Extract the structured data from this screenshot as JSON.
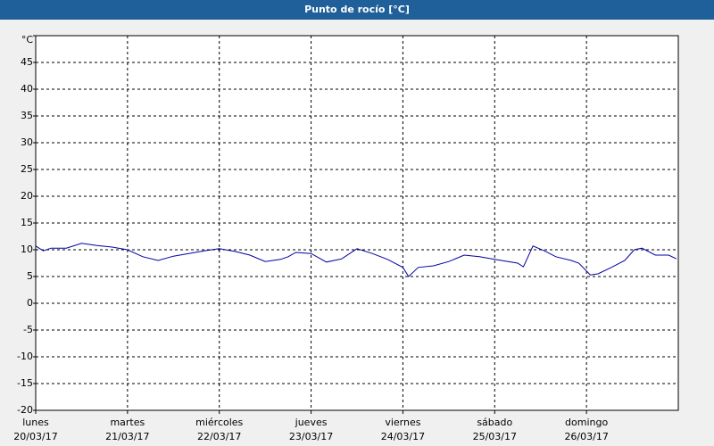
{
  "chart_data": {
    "type": "line",
    "title": "Punto de rocío [°C]",
    "xlim": [
      0,
      168
    ],
    "xticks": [
      {
        "value": 0,
        "label": [
          "lunes",
          "20/03/17"
        ]
      },
      {
        "value": 24,
        "label": [
          "martes",
          "21/03/17"
        ]
      },
      {
        "value": 48,
        "label": [
          "miércoles",
          "22/03/17"
        ]
      },
      {
        "value": 72,
        "label": [
          "jueves",
          "23/03/17"
        ]
      },
      {
        "value": 96,
        "label": [
          "viernes",
          "24/03/17"
        ]
      },
      {
        "value": 120,
        "label": [
          "sábado",
          "25/03/17"
        ]
      },
      {
        "value": 144,
        "label": [
          "domingo",
          "26/03/17"
        ]
      }
    ],
    "ylim": [
      -20,
      50
    ],
    "yticks": [
      -20,
      -15,
      -10,
      -5,
      0,
      5,
      10,
      15,
      20,
      25,
      30,
      35,
      40,
      45,
      {
        "value": 50,
        "label": "°C"
      }
    ],
    "grid": true,
    "series": [
      {
        "color": "#0000a0",
        "x": [
          0,
          2,
          4,
          8,
          12,
          16,
          20,
          24,
          28,
          32,
          36,
          40,
          44,
          48,
          52,
          56,
          60,
          64,
          66,
          68,
          72,
          76,
          80,
          84,
          88,
          92,
          96,
          97.5,
          100,
          104,
          108,
          112,
          116,
          120,
          126,
          127.5,
          130,
          133,
          136,
          140,
          142,
          145,
          147,
          150.5,
          154,
          156.5,
          158.5,
          162,
          165.5,
          167.5
        ],
        "values": [
          10.7,
          9.8,
          10.3,
          10.3,
          11.2,
          10.8,
          10.5,
          10,
          8.7,
          8,
          8.8,
          9.3,
          9.8,
          10.2,
          9.7,
          9,
          7.8,
          8.2,
          8.7,
          9.5,
          9.3,
          7.7,
          8.3,
          10.2,
          9.3,
          8.2,
          6.7,
          5,
          6.7,
          7,
          7.8,
          9,
          8.7,
          8.2,
          7.5,
          6.8,
          10.7,
          9.8,
          8.7,
          8,
          7.5,
          5.3,
          5.5,
          6.7,
          8,
          10,
          10.3,
          9,
          9,
          8.3
        ]
      }
    ]
  }
}
